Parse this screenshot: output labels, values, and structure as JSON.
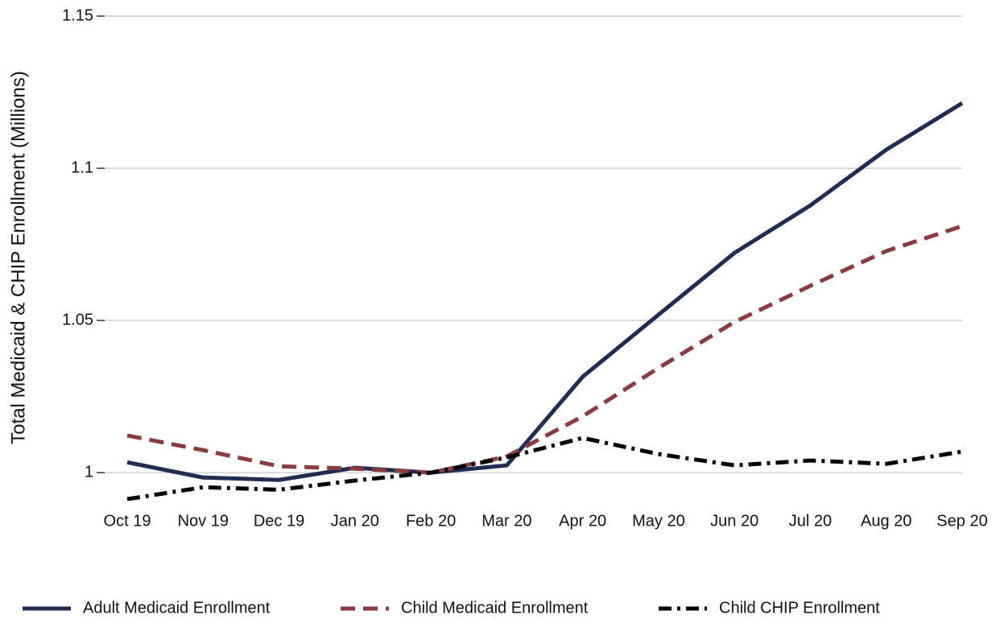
{
  "chart_data": {
    "type": "line",
    "y_label": "Total Medicaid & CHIP Enrollment (Millions)",
    "categories": [
      "Oct 19",
      "Nov 19",
      "Dec 19",
      "Jan 20",
      "Feb 20",
      "Mar 20",
      "Apr 20",
      "May 20",
      "Jun 20",
      "Jul 20",
      "Aug 20",
      "Sep 20"
    ],
    "series": [
      {
        "name": "Adult Medicaid Enrollment",
        "color": "#1f2d55",
        "dash": "solid",
        "values": [
          1.0034,
          0.9984,
          0.9976,
          1.0016,
          1.0,
          1.0024,
          1.0315,
          1.0519,
          1.0722,
          1.0878,
          1.1061,
          1.1214
        ]
      },
      {
        "name": "Child Medicaid Enrollment",
        "color": "#8b3a3e",
        "dash": "dashed",
        "values": [
          1.0122,
          1.0074,
          1.0021,
          1.0013,
          1.0,
          1.0053,
          1.0185,
          1.0344,
          1.0495,
          1.0614,
          1.0728,
          1.081
        ]
      },
      {
        "name": "Child CHIP Enrollment",
        "color": "#000000",
        "dash": "dashdot",
        "values": [
          0.9913,
          0.9952,
          0.9944,
          0.9974,
          1.0,
          1.005,
          1.0114,
          1.0061,
          1.0024,
          1.004,
          1.0029,
          1.0069
        ]
      }
    ],
    "ylim": [
      0.99,
      1.15
    ],
    "yticks": [
      1,
      1.05,
      1.1,
      1.15
    ],
    "grid": true,
    "legend": "bottom"
  }
}
